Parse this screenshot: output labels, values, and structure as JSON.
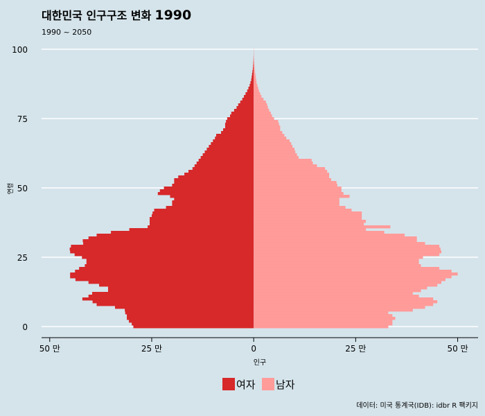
{
  "chart_data": {
    "type": "population-pyramid",
    "title_prefix": "대한민국 인구구조 변화",
    "title_year": "1990",
    "subtitle": "1990 ~ 2050",
    "xlabel": "인구",
    "ylabel": "연령",
    "caption": "데이터: 미국 통계국(IDB): idbr R 팩키지",
    "xlim": [
      -52,
      55
    ],
    "ylim": [
      -4,
      101
    ],
    "x_ticks": [
      {
        "value": -50,
        "label": "50 만"
      },
      {
        "value": -25,
        "label": "25 만"
      },
      {
        "value": 0,
        "label": "0"
      },
      {
        "value": 25,
        "label": "25 만"
      },
      {
        "value": 50,
        "label": "50 만"
      }
    ],
    "y_ticks": [
      0,
      25,
      50,
      75,
      100
    ],
    "ages": [
      0,
      1,
      2,
      3,
      4,
      5,
      6,
      7,
      8,
      9,
      10,
      11,
      12,
      13,
      14,
      15,
      16,
      17,
      18,
      19,
      20,
      21,
      22,
      23,
      24,
      25,
      26,
      27,
      28,
      29,
      30,
      31,
      32,
      33,
      34,
      35,
      36,
      37,
      38,
      39,
      40,
      41,
      42,
      43,
      44,
      45,
      46,
      47,
      48,
      49,
      50,
      51,
      52,
      53,
      54,
      55,
      56,
      57,
      58,
      59,
      60,
      61,
      62,
      63,
      64,
      65,
      66,
      67,
      68,
      69,
      70,
      71,
      72,
      73,
      74,
      75,
      76,
      77,
      78,
      79,
      80,
      81,
      82,
      83,
      84,
      85,
      86,
      87,
      88,
      89,
      90,
      91,
      92,
      93,
      94,
      95,
      96,
      97,
      98,
      99,
      100
    ],
    "series": [
      {
        "name": "여자",
        "color": "#d7282a",
        "unit": "만",
        "values": [
          29.5,
          29.9,
          30.6,
          31.1,
          31.1,
          31.5,
          31.6,
          34.0,
          38.5,
          39.5,
          42.0,
          40.5,
          39.6,
          35.7,
          35.7,
          37.9,
          40.5,
          43.7,
          45.0,
          45.0,
          43.8,
          42.8,
          41.4,
          41.0,
          41.0,
          42.1,
          43.9,
          45.0,
          45.1,
          44.8,
          41.8,
          41.9,
          40.5,
          38.5,
          35.0,
          30.5,
          26.0,
          25.5,
          25.5,
          25.5,
          25.0,
          24.8,
          24.4,
          21.5,
          20.0,
          20.0,
          19.5,
          20.5,
          23.5,
          23.0,
          22.0,
          20.0,
          19.5,
          19.5,
          18.5,
          17.0,
          16.0,
          15.0,
          14.5,
          14.0,
          13.5,
          13.0,
          12.5,
          12.0,
          11.5,
          11.0,
          10.5,
          10.0,
          9.5,
          9.2,
          8.0,
          7.5,
          7.0,
          7.0,
          6.8,
          6.5,
          5.8,
          5.5,
          4.8,
          4.2,
          3.8,
          3.3,
          2.8,
          2.4,
          2.0,
          1.6,
          1.3,
          1.0,
          0.8,
          0.6,
          0.5,
          0.4,
          0.3,
          0.2,
          0.15,
          0.1,
          0.07,
          0.05,
          0.03,
          0.02,
          0.01
        ]
      },
      {
        "name": "남자",
        "color": "#ff9b99",
        "unit": "만",
        "values": [
          33.0,
          34.0,
          34.0,
          34.7,
          34.0,
          33.0,
          39.0,
          42.0,
          44.0,
          45.0,
          44.0,
          40.5,
          39.0,
          41.0,
          42.5,
          45.0,
          46.0,
          47.0,
          48.5,
          50.0,
          48.5,
          45.5,
          41.0,
          40.5,
          40.5,
          41.5,
          45.5,
          46.0,
          45.8,
          45.5,
          42.0,
          40.0,
          40.0,
          37.0,
          32.0,
          27.5,
          33.5,
          27.0,
          27.5,
          26.5,
          26.5,
          26.5,
          24.0,
          22.5,
          21.0,
          21.0,
          21.0,
          23.5,
          22.0,
          21.5,
          21.5,
          20.5,
          20.3,
          19.0,
          18.5,
          18.5,
          18.0,
          17.5,
          15.5,
          14.5,
          14.2,
          11.0,
          10.6,
          10.2,
          10.0,
          9.5,
          9.2,
          8.8,
          8.0,
          7.5,
          7.0,
          6.5,
          6.5,
          6.2,
          6.0,
          5.0,
          4.5,
          4.2,
          3.8,
          3.5,
          3.3,
          3.0,
          2.4,
          1.9,
          1.6,
          1.3,
          1.1,
          0.9,
          0.7,
          0.6,
          0.5,
          0.4,
          0.3,
          0.25,
          0.2,
          0.15,
          0.1,
          0.07,
          0.05,
          0.03,
          0.02
        ]
      }
    ]
  }
}
